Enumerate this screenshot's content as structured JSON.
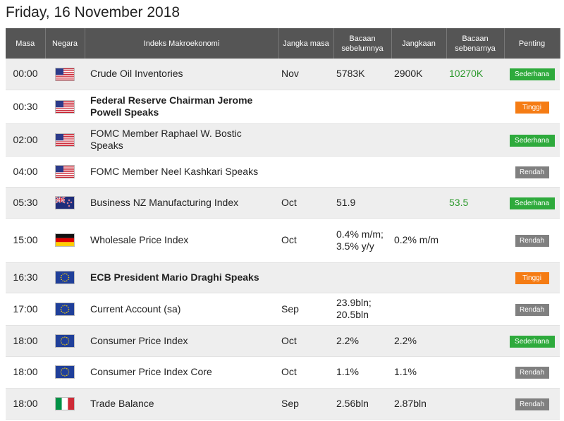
{
  "page": {
    "date_title": "Friday, 16 November 2018"
  },
  "table": {
    "headers": {
      "time": "Masa",
      "country": "Negara",
      "event": "Indeks Makroekonomi",
      "period": "Jangka masa",
      "previous": "Bacaan sebelumnya",
      "forecast": "Jangkaan",
      "actual": "Bacaan sebenarnya",
      "importance": "Penting"
    },
    "rows": [
      {
        "time": "00:00",
        "flag": "us-flag-icon",
        "event": "Crude Oil Inventories",
        "bold": false,
        "period": "Nov",
        "previous": "5783K",
        "forecast": "2900K",
        "actual": "10270K",
        "importance": "Sederhana",
        "importance_color": "#2eaa3c"
      },
      {
        "time": "00:30",
        "flag": "us-flag-icon",
        "event": "Federal Reserve Chairman Jerome Powell Speaks",
        "bold": true,
        "period": "",
        "previous": "",
        "forecast": "",
        "actual": "",
        "importance": "Tinggi",
        "importance_color": "#f57c14"
      },
      {
        "time": "02:00",
        "flag": "us-flag-icon",
        "event": "FOMC Member Raphael W. Bostic Speaks",
        "bold": false,
        "period": "",
        "previous": "",
        "forecast": "",
        "actual": "",
        "importance": "Sederhana",
        "importance_color": "#2eaa3c"
      },
      {
        "time": "04:00",
        "flag": "us-flag-icon",
        "event": "FOMC Member Neel Kashkari Speaks",
        "bold": false,
        "period": "",
        "previous": "",
        "forecast": "",
        "actual": "",
        "importance": "Rendah",
        "importance_color": "#808080"
      },
      {
        "time": "05:30",
        "flag": "nz-flag-icon",
        "event": "Business NZ Manufacturing Index",
        "bold": false,
        "period": "Oct",
        "previous": "51.9",
        "forecast": "",
        "actual": "53.5",
        "importance": "Sederhana",
        "importance_color": "#2eaa3c"
      },
      {
        "time": "15:00",
        "flag": "de-flag-icon",
        "event": "Wholesale Price Index",
        "bold": false,
        "period": "Oct",
        "previous": "0.4% m/m; 3.5% y/y",
        "forecast": "0.2% m/m",
        "actual": "",
        "importance": "Rendah",
        "importance_color": "#808080"
      },
      {
        "time": "16:30",
        "flag": "eu-flag-icon",
        "event": "ECB President Mario Draghi Speaks",
        "bold": true,
        "period": "",
        "previous": "",
        "forecast": "",
        "actual": "",
        "importance": "Tinggi",
        "importance_color": "#f57c14"
      },
      {
        "time": "17:00",
        "flag": "eu-flag-icon",
        "event": "Current Account (sa)",
        "bold": false,
        "period": "Sep",
        "previous": "23.9bln; 20.5bln",
        "forecast": "",
        "actual": "",
        "importance": "Rendah",
        "importance_color": "#808080"
      },
      {
        "time": "18:00",
        "flag": "eu-flag-icon",
        "event": "Consumer Price Index",
        "bold": false,
        "period": "Oct",
        "previous": "2.2%",
        "forecast": "2.2%",
        "actual": "",
        "importance": "Sederhana",
        "importance_color": "#2eaa3c"
      },
      {
        "time": "18:00",
        "flag": "eu-flag-icon",
        "event": "Consumer Price Index Core",
        "bold": false,
        "period": "Oct",
        "previous": "1.1%",
        "forecast": "1.1%",
        "actual": "",
        "importance": "Rendah",
        "importance_color": "#808080"
      },
      {
        "time": "18:00",
        "flag": "it-flag-icon",
        "event": "Trade Balance",
        "bold": false,
        "period": "Sep",
        "previous": "2.56bln",
        "forecast": "2.87bln",
        "actual": "",
        "importance": "Rendah",
        "importance_color": "#808080"
      }
    ]
  }
}
